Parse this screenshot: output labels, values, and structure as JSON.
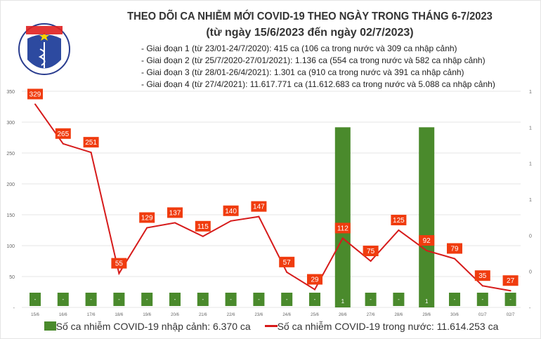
{
  "header": {
    "logo_text_top": "BỘ Y TẾ",
    "logo_text_bottom": "MINISTRY OF HEALTH",
    "title": "THEO DÕI CA NHIỄM MỚI COVID-19 THEO NGÀY TRONG THÁNG 6-7/2023",
    "subtitle": "(từ ngày 15/6/2023 đến ngày 02/7/2023)",
    "notes": [
      "- Giai đoạn 1 (từ 23/01-24/7/2020): 415 ca (106 ca trong nước và 309 ca nhập cảnh)",
      "- Giai đoạn 2 (từ 25/7/2020-27/01/2021): 1.136 ca (554 ca trong nước và 582 ca nhập cảnh)",
      "- Giai đoạn 3 (từ 28/01-26/4/2021): 1.301 ca (910 ca trong nước và 391 ca nhập cảnh)",
      "- Giai đoạn 4 (từ 27/4/2021): 11.617.771 ca (11.612.683 ca trong nước và 5.088 ca nhập cảnh)"
    ]
  },
  "chart_data": {
    "type": "bar+line",
    "categories": [
      "15/6",
      "16/6",
      "17/6",
      "18/6",
      "19/6",
      "20/6",
      "21/6",
      "22/6",
      "23/6",
      "24/6",
      "25/6",
      "26/6",
      "27/6",
      "28/6",
      "29/6",
      "30/6",
      "01/7",
      "02/7"
    ],
    "series": [
      {
        "name": "Số ca nhiễm COVID-19 nhập cảnh: 6.370 ca",
        "type": "bar",
        "axis": "right",
        "color": "#4a8a2c",
        "values": [
          0,
          0,
          0,
          0,
          0,
          0,
          0,
          0,
          0,
          0,
          0,
          1,
          0,
          0,
          1,
          0,
          0,
          0
        ],
        "labels": [
          "-",
          "-",
          "-",
          "-",
          "-",
          "-",
          "-",
          "-",
          "-",
          "-",
          "-",
          "1",
          "-",
          "-",
          "1",
          "-",
          "-",
          "-"
        ]
      },
      {
        "name": "Số ca nhiễm COVID-19 trong nước: 11.614.253 ca",
        "type": "line",
        "axis": "left",
        "color": "#d61a1a",
        "label_color": "#f03c0f",
        "values": [
          329,
          265,
          251,
          55,
          129,
          137,
          115,
          140,
          147,
          57,
          29,
          112,
          75,
          125,
          92,
          79,
          35,
          27
        ]
      }
    ],
    "left_axis": {
      "range": [
        0,
        350
      ],
      "ticks": [
        "-",
        "50",
        "100",
        "150",
        "200",
        "250",
        "300",
        "350"
      ]
    },
    "right_axis": {
      "range": [
        0,
        1.2
      ],
      "ticks": [
        "-",
        "0",
        "0",
        "1",
        "1",
        "1",
        "1"
      ]
    },
    "grid": true,
    "legend": "bottom"
  }
}
